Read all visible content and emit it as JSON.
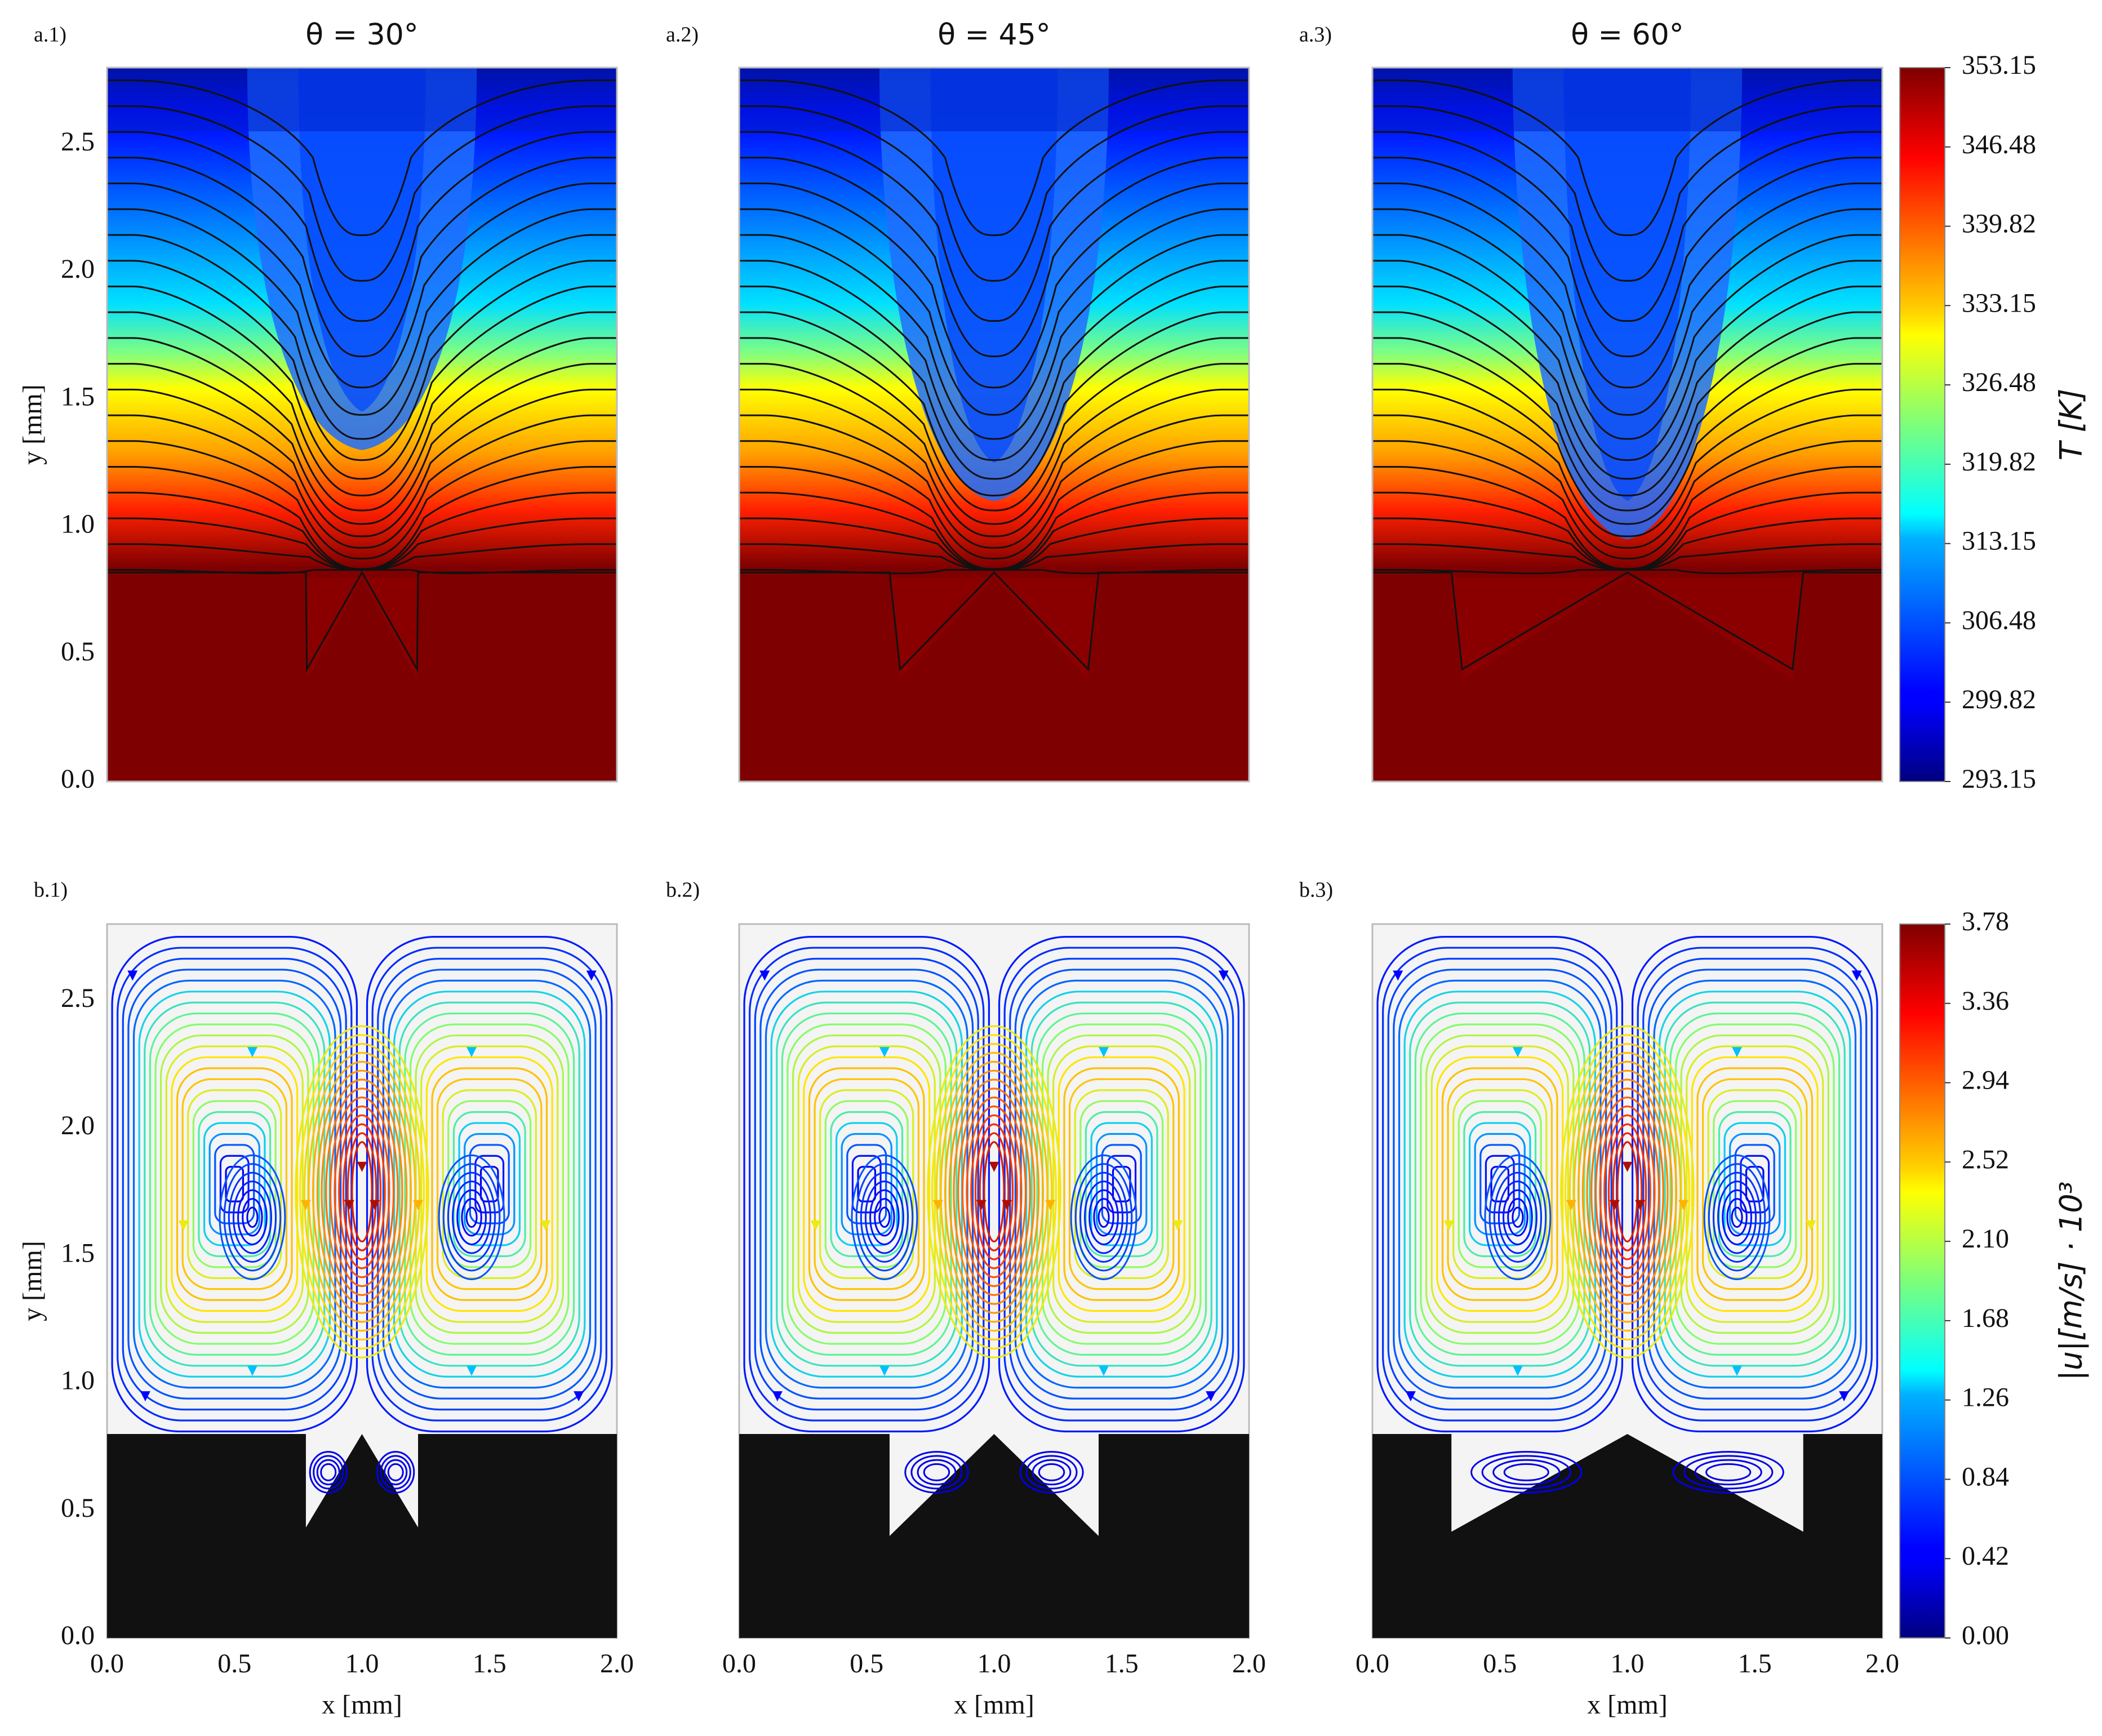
{
  "figure": {
    "row_a": {
      "panels": [
        {
          "label": "a.1)",
          "title": "θ = 30°",
          "angle": 30
        },
        {
          "label": "a.2)",
          "title": "θ = 45°",
          "angle": 45
        },
        {
          "label": "a.3)",
          "title": "θ = 60°",
          "angle": 60
        }
      ],
      "ylabel": "y [mm]",
      "colorbar": {
        "label": "T [K]",
        "ticks": [
          "353.15",
          "346.48",
          "339.82",
          "333.15",
          "326.48",
          "319.82",
          "313.15",
          "306.48",
          "299.82",
          "293.15"
        ]
      }
    },
    "row_b": {
      "panels": [
        {
          "label": "b.1)",
          "angle": 30
        },
        {
          "label": "b.2)",
          "angle": 45
        },
        {
          "label": "b.3)",
          "angle": 60
        }
      ],
      "ylabel": "y [mm]",
      "xlabel": "x [mm]",
      "colorbar": {
        "label": "|u|[m/s] · 10³",
        "ticks": [
          "3.78",
          "3.36",
          "2.94",
          "2.52",
          "2.10",
          "1.68",
          "1.26",
          "0.84",
          "0.42",
          "0.00"
        ]
      }
    }
  },
  "chart_data": [
    {
      "type": "heatmap",
      "title": "θ = 30°",
      "panel_label": "a.1)",
      "quantity": "Temperature field with isotherms",
      "ylabel": "y [mm]",
      "xlim": [
        0,
        2.0
      ],
      "ylim": [
        0,
        2.8
      ],
      "yticks": [
        "0.0",
        "0.5",
        "1.0",
        "1.5",
        "2.0",
        "2.5"
      ],
      "color_range": [
        293.15,
        353.15
      ],
      "solid_block_top_y": 0.8,
      "groove_apex_y": 0.8,
      "groove_depth_y": 0.4
    },
    {
      "type": "heatmap",
      "title": "θ = 45°",
      "panel_label": "a.2)",
      "quantity": "Temperature field with isotherms",
      "xlim": [
        0,
        2.0
      ],
      "ylim": [
        0,
        2.8
      ],
      "color_range": [
        293.15,
        353.15
      ],
      "solid_block_top_y": 0.8,
      "groove_apex_y": 0.8,
      "groove_depth_y": 0.4
    },
    {
      "type": "heatmap",
      "title": "θ = 60°",
      "panel_label": "a.3)",
      "quantity": "Temperature field with isotherms",
      "xlim": [
        0,
        2.0
      ],
      "ylim": [
        0,
        2.8
      ],
      "color_range": [
        293.15,
        353.15
      ],
      "solid_block_top_y": 0.8,
      "groove_apex_y": 0.8,
      "groove_depth_y": 0.4
    },
    {
      "type": "heatmap",
      "panel_label": "b.1)",
      "quantity": "Velocity magnitude streamlines",
      "xlabel": "x [mm]",
      "ylabel": "y [mm]",
      "xlim": [
        0,
        2.0
      ],
      "ylim": [
        0,
        2.8
      ],
      "xticks": [
        "0.0",
        "0.5",
        "1.0",
        "1.5",
        "2.0"
      ],
      "yticks": [
        "0.0",
        "0.5",
        "1.0",
        "1.5",
        "2.0",
        "2.5"
      ],
      "color_range": [
        0.0,
        3.78
      ],
      "vortex_centers_x": [
        0.57,
        1.0,
        1.43
      ],
      "vortex_center_y": 1.65
    },
    {
      "type": "heatmap",
      "panel_label": "b.2)",
      "quantity": "Velocity magnitude streamlines",
      "xlabel": "x [mm]",
      "xlim": [
        0,
        2.0
      ],
      "ylim": [
        0,
        2.8
      ],
      "xticks": [
        "0.0",
        "0.5",
        "1.0",
        "1.5",
        "2.0"
      ],
      "color_range": [
        0.0,
        3.78
      ],
      "vortex_centers_x": [
        0.57,
        1.0,
        1.43
      ],
      "vortex_center_y": 1.65
    },
    {
      "type": "heatmap",
      "panel_label": "b.3)",
      "quantity": "Velocity magnitude streamlines",
      "xlabel": "x [mm]",
      "xlim": [
        0,
        2.0
      ],
      "ylim": [
        0,
        2.8
      ],
      "xticks": [
        "0.0",
        "0.5",
        "1.0",
        "1.5",
        "2.0"
      ],
      "color_range": [
        0.0,
        3.78
      ],
      "vortex_centers_x": [
        0.57,
        1.0,
        1.43
      ],
      "vortex_center_y": 1.65
    }
  ]
}
